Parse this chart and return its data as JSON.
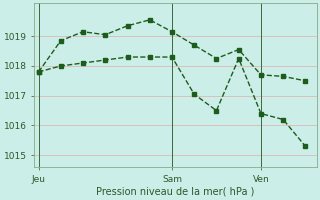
{
  "title": "",
  "xlabel": "Pression niveau de la mer( hPa )",
  "bg_color": "#cceee8",
  "grid_color": "#ddb8b8",
  "line_color": "#1e5c1e",
  "line1_x": [
    0,
    1,
    2,
    3,
    4,
    5,
    6,
    7,
    8,
    9,
    10,
    11,
    12
  ],
  "line1_y": [
    1017.8,
    1018.85,
    1019.15,
    1019.05,
    1019.35,
    1019.55,
    1019.15,
    1018.7,
    1018.25,
    1018.55,
    1017.7,
    1017.65,
    1017.5
  ],
  "line2_x": [
    0,
    1,
    2,
    3,
    4,
    5,
    6,
    7,
    8,
    9,
    10,
    11,
    12
  ],
  "line2_y": [
    1017.8,
    1018.0,
    1018.1,
    1018.2,
    1018.3,
    1018.3,
    1018.3,
    1017.05,
    1016.5,
    1018.25,
    1016.4,
    1016.2,
    1015.3
  ],
  "vline_positions": [
    0,
    6,
    10
  ],
  "xtick_positions": [
    0,
    6,
    10
  ],
  "xtick_labels": [
    "Jeu",
    "Sam",
    "Ven"
  ],
  "ytick_positions": [
    1015,
    1016,
    1017,
    1018,
    1019
  ],
  "ytick_labels": [
    "1015",
    "1016",
    "1017",
    "1018",
    "1019"
  ],
  "ylim": [
    1014.6,
    1020.1
  ],
  "xlim": [
    -0.2,
    12.5
  ],
  "font_color": "#2a5a2a"
}
